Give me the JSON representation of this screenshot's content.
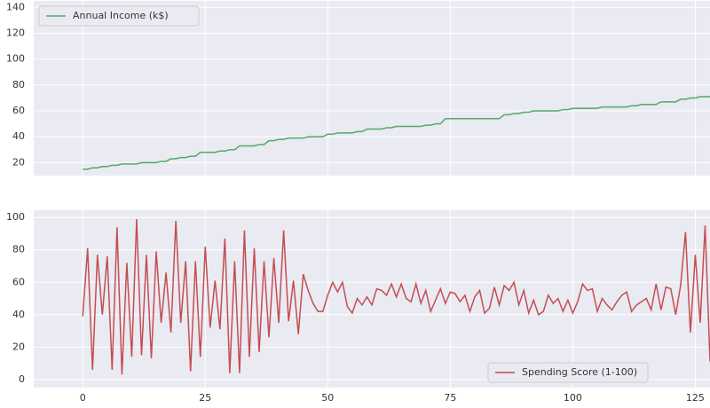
{
  "chart_data": [
    {
      "type": "line",
      "x": [
        0,
        1,
        2,
        3,
        4,
        5,
        6,
        7,
        8,
        9,
        10,
        11,
        12,
        13,
        14,
        15,
        16,
        17,
        18,
        19,
        20,
        21,
        22,
        23,
        24,
        25,
        26,
        27,
        28,
        29,
        30,
        31,
        32,
        33,
        34,
        35,
        36,
        37,
        38,
        39,
        40,
        41,
        42,
        43,
        44,
        45,
        46,
        47,
        48,
        49,
        50,
        51,
        52,
        53,
        54,
        55,
        56,
        57,
        58,
        59,
        60,
        61,
        62,
        63,
        64,
        65,
        66,
        67,
        68,
        69,
        70,
        71,
        72,
        73,
        74,
        75,
        76,
        77,
        78,
        79,
        80,
        81,
        82,
        83,
        84,
        85,
        86,
        87,
        88,
        89,
        90,
        91,
        92,
        93,
        94,
        95,
        96,
        97,
        98,
        99,
        100,
        101,
        102,
        103,
        104,
        105,
        106,
        107,
        108,
        109,
        110,
        111,
        112,
        113,
        114,
        115,
        116,
        117,
        118,
        119,
        120,
        121,
        122,
        123,
        124,
        125,
        126,
        127,
        128
      ],
      "series": [
        {
          "name": "Annual Income (k$)",
          "color": "#55a868",
          "values": [
            15,
            15,
            16,
            16,
            17,
            17,
            18,
            18,
            19,
            19,
            19,
            19,
            20,
            20,
            20,
            20,
            21,
            21,
            23,
            23,
            24,
            24,
            25,
            25,
            28,
            28,
            28,
            28,
            29,
            29,
            30,
            30,
            33,
            33,
            33,
            33,
            34,
            34,
            37,
            37,
            38,
            38,
            39,
            39,
            39,
            39,
            40,
            40,
            40,
            40,
            42,
            42,
            43,
            43,
            43,
            43,
            44,
            44,
            46,
            46,
            46,
            46,
            47,
            47,
            48,
            48,
            48,
            48,
            48,
            48,
            49,
            49,
            50,
            50,
            54,
            54,
            54,
            54,
            54,
            54,
            54,
            54,
            54,
            54,
            54,
            54,
            57,
            57,
            58,
            58,
            59,
            59,
            60,
            60,
            60,
            60,
            60,
            60,
            61,
            61,
            62,
            62,
            62,
            62,
            62,
            62,
            63,
            63,
            63,
            63,
            63,
            63,
            64,
            64,
            65,
            65,
            65,
            65,
            67,
            67,
            67,
            67,
            69,
            69,
            70,
            70,
            71,
            71,
            71
          ]
        }
      ],
      "xlim": [
        -10,
        128
      ],
      "xticks": [
        0,
        25,
        50,
        75,
        100,
        125
      ],
      "xtick_labels": false,
      "ylim": [
        10,
        145
      ],
      "yticks": [
        20,
        40,
        60,
        80,
        100,
        120,
        140
      ],
      "grid": true,
      "legend": "upper left"
    },
    {
      "type": "line",
      "x": [
        0,
        1,
        2,
        3,
        4,
        5,
        6,
        7,
        8,
        9,
        10,
        11,
        12,
        13,
        14,
        15,
        16,
        17,
        18,
        19,
        20,
        21,
        22,
        23,
        24,
        25,
        26,
        27,
        28,
        29,
        30,
        31,
        32,
        33,
        34,
        35,
        36,
        37,
        38,
        39,
        40,
        41,
        42,
        43,
        44,
        45,
        46,
        47,
        48,
        49,
        50,
        51,
        52,
        53,
        54,
        55,
        56,
        57,
        58,
        59,
        60,
        61,
        62,
        63,
        64,
        65,
        66,
        67,
        68,
        69,
        70,
        71,
        72,
        73,
        74,
        75,
        76,
        77,
        78,
        79,
        80,
        81,
        82,
        83,
        84,
        85,
        86,
        87,
        88,
        89,
        90,
        91,
        92,
        93,
        94,
        95,
        96,
        97,
        98,
        99,
        100,
        101,
        102,
        103,
        104,
        105,
        106,
        107,
        108,
        109,
        110,
        111,
        112,
        113,
        114,
        115,
        116,
        117,
        118,
        119,
        120,
        121,
        122,
        123,
        124,
        125,
        126,
        127,
        128
      ],
      "series": [
        {
          "name": "Spending Score (1-100)",
          "color": "#c44e52",
          "values": [
            39,
            81,
            6,
            77,
            40,
            76,
            6,
            94,
            3,
            72,
            14,
            99,
            15,
            77,
            13,
            79,
            35,
            66,
            29,
            98,
            35,
            73,
            5,
            73,
            14,
            82,
            32,
            61,
            31,
            87,
            4,
            73,
            4,
            92,
            14,
            81,
            17,
            73,
            26,
            75,
            35,
            92,
            36,
            61,
            28,
            65,
            55,
            47,
            42,
            42,
            52,
            60,
            54,
            60,
            45,
            41,
            50,
            46,
            51,
            46,
            56,
            55,
            52,
            59,
            51,
            59,
            50,
            48,
            59,
            47,
            55,
            42,
            49,
            56,
            47,
            54,
            53,
            48,
            52,
            42,
            51,
            55,
            41,
            44,
            57,
            46,
            58,
            55,
            60,
            46,
            55,
            41,
            49,
            40,
            42,
            52,
            47,
            50,
            42,
            49,
            41,
            48,
            59,
            55,
            56,
            42,
            50,
            46,
            43,
            48,
            52,
            54,
            42,
            46,
            48,
            50,
            43,
            59,
            43,
            57,
            56,
            40,
            58,
            91,
            29,
            77,
            35,
            95,
            11
          ]
        }
      ],
      "xlim": [
        -10,
        128
      ],
      "xticks": [
        0,
        25,
        50,
        75,
        100,
        125
      ],
      "xtick_labels": true,
      "ylim": [
        -5,
        104.5
      ],
      "yticks": [
        0,
        20,
        40,
        60,
        80,
        100
      ],
      "grid": true,
      "legend": "lower right"
    }
  ]
}
